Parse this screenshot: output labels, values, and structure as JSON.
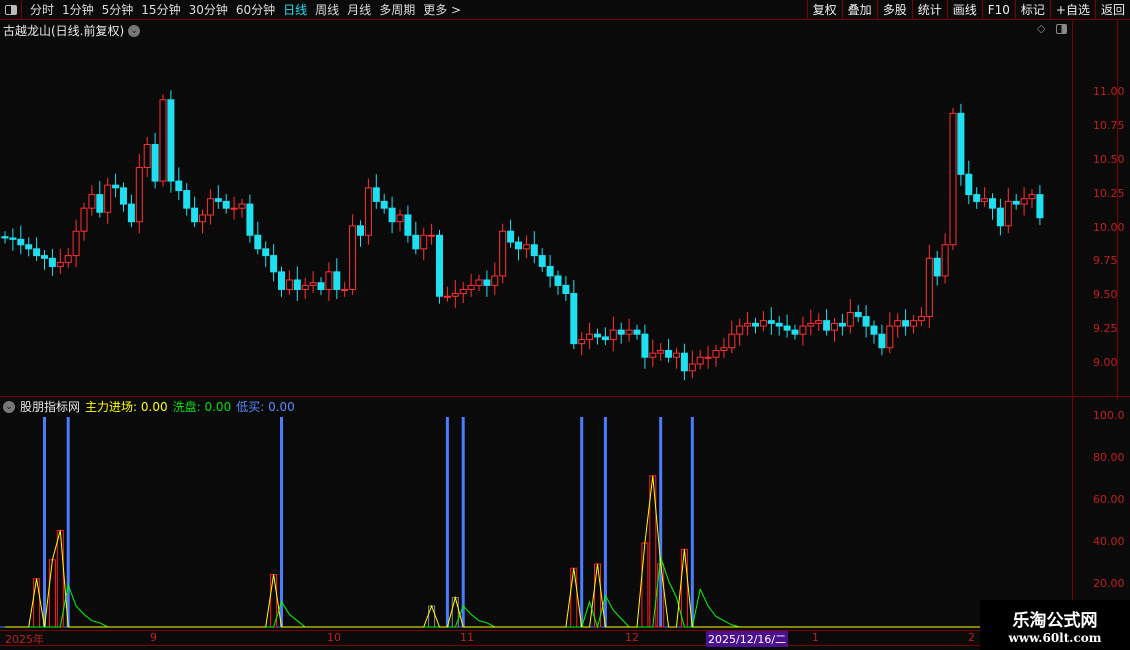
{
  "toolbar": {
    "periods": [
      "分时",
      "1分钟",
      "5分钟",
      "15分钟",
      "30分钟",
      "60分钟",
      "日线",
      "周线",
      "月线",
      "多周期",
      "更多 >"
    ],
    "active_period": "日线",
    "tools": [
      "复权",
      "叠加",
      "多股",
      "统计",
      "画线",
      "F10",
      "标记",
      "+自选",
      "返回"
    ]
  },
  "main": {
    "title": "古越龙山(日线.前复权)",
    "price_ticks": [
      "11.00",
      "10.75",
      "10.50",
      "10.25",
      "10.00",
      "9.75",
      "9.50",
      "9.25",
      "9.00"
    ]
  },
  "indicator": {
    "name": "股朋指标网",
    "zhuli_label": "主力进场:",
    "zhuli_value": "0.00",
    "xipan_label": "洗盘:",
    "xipan_value": "0.00",
    "dimai_label": "低买:",
    "dimai_value": "0.00",
    "ticks": [
      "100.0",
      "80.00",
      "60.00",
      "40.00",
      "20.00"
    ]
  },
  "date_axis": {
    "labels": [
      "2025年",
      "9",
      "10",
      "11",
      "12",
      "1",
      "2"
    ],
    "cursor_date": "2025/12/16/二"
  },
  "watermark": {
    "name": "乐淘公式网",
    "url": "www.60lt.com"
  },
  "colors": {
    "up": "#ff3030",
    "down": "#1ee0f0",
    "zhuli": "#ffff00",
    "xipan": "#00ff00",
    "dimai": "#4a7cff",
    "frame": "#7a0000"
  },
  "chart_data": {
    "type": "candlestick",
    "ylim": [
      8.85,
      11.45
    ],
    "close": [
      9.93,
      9.92,
      9.88,
      9.85,
      9.8,
      9.78,
      9.72,
      9.75,
      9.8,
      9.98,
      10.15,
      10.25,
      10.12,
      10.32,
      10.3,
      10.18,
      10.05,
      10.45,
      10.62,
      10.35,
      10.95,
      10.35,
      10.28,
      10.15,
      10.05,
      10.1,
      10.22,
      10.2,
      10.15,
      10.15,
      10.18,
      9.95,
      9.85,
      9.8,
      9.68,
      9.55,
      9.62,
      9.55,
      9.58,
      9.6,
      9.55,
      9.68,
      9.55,
      9.55,
      10.02,
      9.95,
      10.3,
      10.2,
      10.15,
      10.05,
      10.1,
      9.95,
      9.85,
      9.95,
      9.95,
      9.5,
      9.5,
      9.52,
      9.55,
      9.58,
      9.62,
      9.58,
      9.65,
      9.98,
      9.9,
      9.85,
      9.88,
      9.8,
      9.72,
      9.65,
      9.58,
      9.52,
      9.15,
      9.18,
      9.22,
      9.2,
      9.18,
      9.25,
      9.22,
      9.25,
      9.22,
      9.05,
      9.08,
      9.1,
      9.05,
      9.08,
      8.95,
      9.0,
      9.05,
      9.05,
      9.1,
      9.12,
      9.22,
      9.28,
      9.3,
      9.28,
      9.32,
      9.3,
      9.28,
      9.25,
      9.22,
      9.28,
      9.3,
      9.32,
      9.25,
      9.3,
      9.28,
      9.38,
      9.35,
      9.28,
      9.22,
      9.12,
      9.28,
      9.32,
      9.28,
      9.32,
      9.35,
      9.78,
      9.65,
      9.88,
      10.85,
      10.4,
      10.25,
      10.2,
      10.22,
      10.15,
      10.02,
      10.2,
      10.18,
      10.22,
      10.25,
      10.08
    ],
    "indicator_ylim": [
      0,
      100
    ],
    "zhuli": [
      [
        4,
        23
      ],
      [
        6,
        32
      ],
      [
        7,
        46
      ],
      [
        34,
        25
      ],
      [
        54,
        10
      ],
      [
        57,
        14
      ],
      [
        72,
        28
      ],
      [
        75,
        30
      ],
      [
        81,
        40
      ],
      [
        82,
        72
      ],
      [
        83,
        30
      ],
      [
        86,
        37
      ]
    ],
    "xipan": [
      [
        8,
        20
      ],
      [
        9,
        10
      ],
      [
        10,
        6
      ],
      [
        11,
        3
      ],
      [
        12,
        2
      ],
      [
        35,
        12
      ],
      [
        36,
        6
      ],
      [
        37,
        3
      ],
      [
        58,
        10
      ],
      [
        59,
        6
      ],
      [
        60,
        3
      ],
      [
        61,
        2
      ],
      [
        74,
        12
      ],
      [
        76,
        15
      ],
      [
        77,
        8
      ],
      [
        78,
        4
      ],
      [
        83,
        33
      ],
      [
        84,
        22
      ],
      [
        85,
        14
      ],
      [
        88,
        18
      ],
      [
        89,
        10
      ],
      [
        90,
        5
      ],
      [
        91,
        3
      ],
      [
        92,
        1
      ]
    ],
    "dimai": [
      5,
      8,
      35,
      56,
      58,
      73,
      76,
      83,
      87
    ]
  }
}
